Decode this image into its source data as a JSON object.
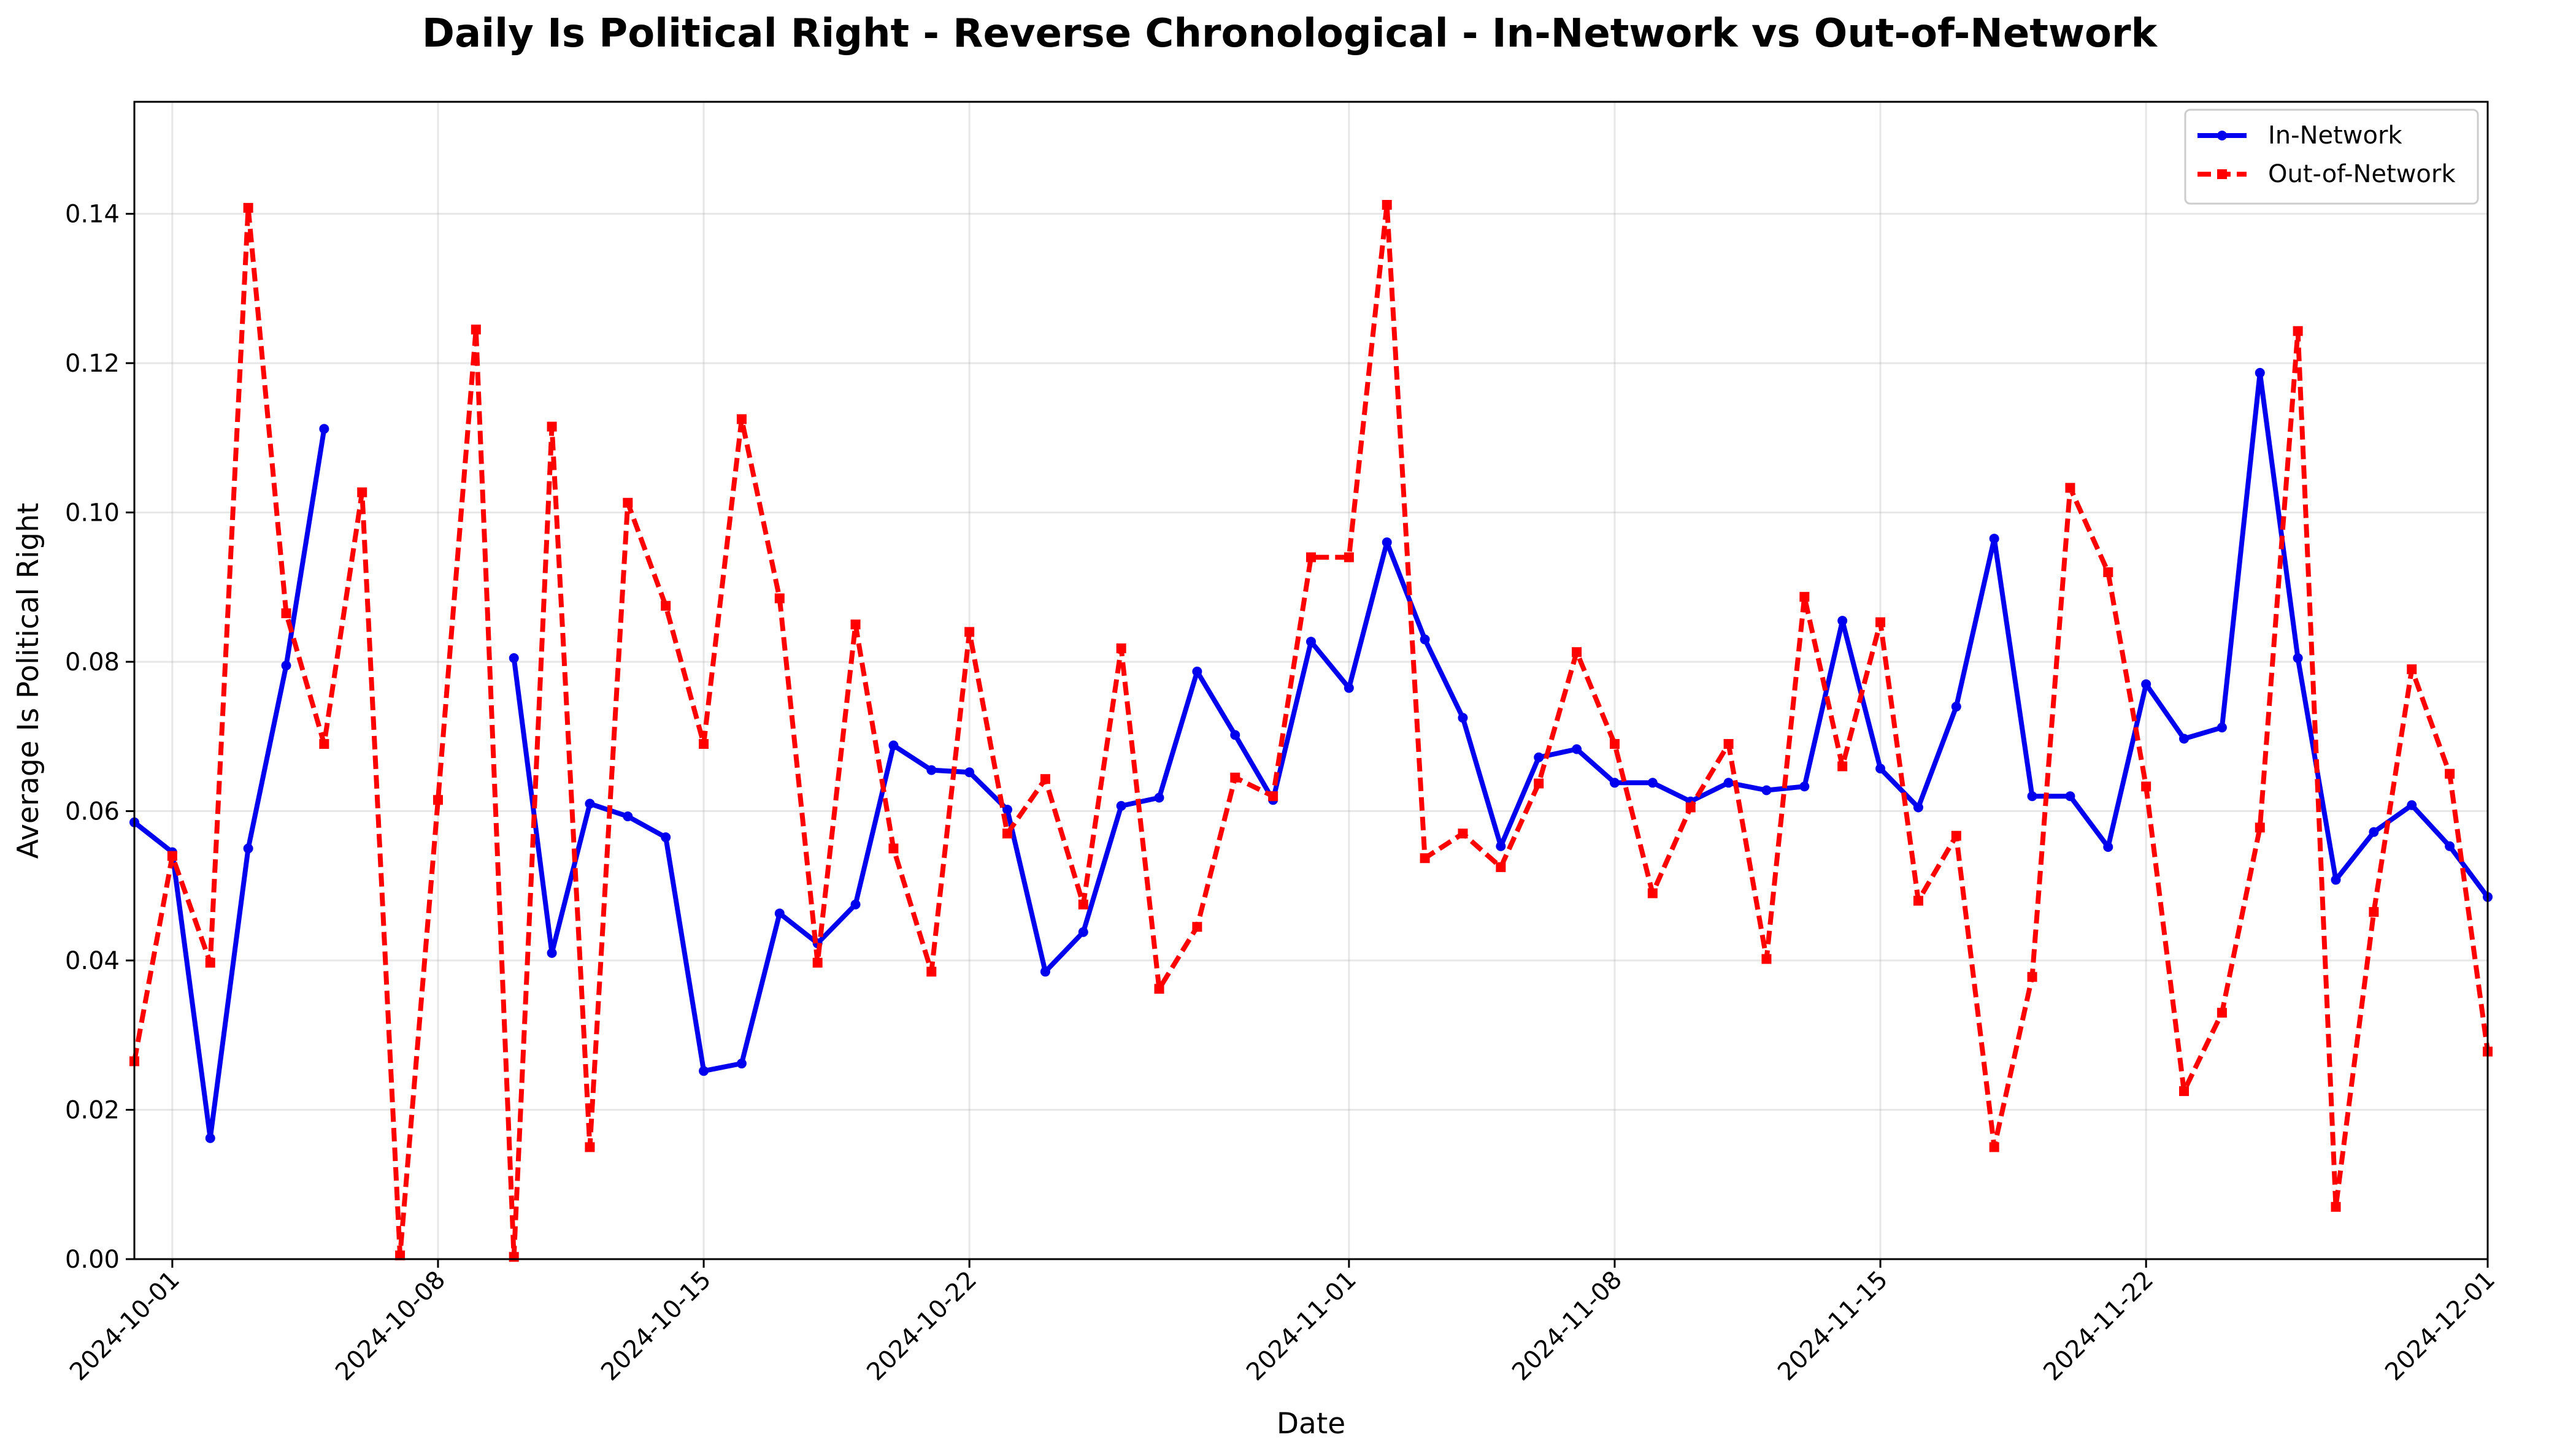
{
  "chart_data": {
    "type": "line",
    "title": "Daily Is Political Right - Reverse Chronological - In-Network vs Out-of-Network",
    "xlabel": "Date",
    "ylabel": "Average Is Political Right",
    "start_date": "2024-09-30",
    "xlim": [
      "2024-09-30",
      "2024-12-01"
    ],
    "ylim": [
      0,
      0.155
    ],
    "x_ticks": [
      "2024-10-01",
      "2024-10-08",
      "2024-10-15",
      "2024-10-22",
      "2024-11-01",
      "2024-11-08",
      "2024-11-15",
      "2024-11-22",
      "2024-12-01"
    ],
    "y_ticks": [
      "0.00",
      "0.02",
      "0.04",
      "0.06",
      "0.08",
      "0.10",
      "0.12",
      "0.14"
    ],
    "grid": true,
    "legend_position": "top-right",
    "series": [
      {
        "name": "In-Network",
        "color": "#0000ee",
        "style": "solid",
        "marker": "circle",
        "points": [
          [
            "2024-09-30",
            0.0585
          ],
          [
            "2024-10-01",
            0.0545
          ],
          [
            "2024-10-02",
            0.0162
          ],
          [
            "2024-10-03",
            0.055
          ],
          [
            "2024-10-04",
            0.0795
          ],
          [
            "2024-10-05",
            0.1112
          ],
          null,
          [
            "2024-10-10",
            0.0805
          ],
          [
            "2024-10-11",
            0.041
          ],
          [
            "2024-10-12",
            0.061
          ],
          [
            "2024-10-13",
            0.0593
          ],
          [
            "2024-10-14",
            0.0565
          ],
          [
            "2024-10-15",
            0.0252
          ],
          [
            "2024-10-16",
            0.0262
          ],
          [
            "2024-10-17",
            0.0463
          ],
          [
            "2024-10-18",
            0.0423
          ],
          [
            "2024-10-19",
            0.0475
          ],
          [
            "2024-10-20",
            0.0688
          ],
          [
            "2024-10-21",
            0.0655
          ],
          [
            "2024-10-22",
            0.0652
          ],
          [
            "2024-10-23",
            0.0602
          ],
          [
            "2024-10-24",
            0.0385
          ],
          [
            "2024-10-25",
            0.0438
          ],
          [
            "2024-10-26",
            0.0607
          ],
          [
            "2024-10-27",
            0.0618
          ],
          [
            "2024-10-28",
            0.0787
          ],
          [
            "2024-10-29",
            0.0702
          ],
          [
            "2024-10-30",
            0.0615
          ],
          [
            "2024-10-31",
            0.0827
          ],
          [
            "2024-11-01",
            0.0765
          ],
          [
            "2024-11-02",
            0.096
          ],
          [
            "2024-11-03",
            0.083
          ],
          [
            "2024-11-04",
            0.0725
          ],
          [
            "2024-11-05",
            0.0553
          ],
          [
            "2024-11-06",
            0.0672
          ],
          [
            "2024-11-07",
            0.0683
          ],
          [
            "2024-11-08",
            0.0638
          ],
          [
            "2024-11-09",
            0.0638
          ],
          [
            "2024-11-10",
            0.0613
          ],
          [
            "2024-11-11",
            0.0638
          ],
          [
            "2024-11-12",
            0.0628
          ],
          [
            "2024-11-13",
            0.0633
          ],
          [
            "2024-11-14",
            0.0855
          ],
          [
            "2024-11-15",
            0.0657
          ],
          [
            "2024-11-16",
            0.0605
          ],
          [
            "2024-11-17",
            0.074
          ],
          [
            "2024-11-18",
            0.0965
          ],
          [
            "2024-11-19",
            0.062
          ],
          [
            "2024-11-20",
            0.062
          ],
          [
            "2024-11-21",
            0.0552
          ],
          [
            "2024-11-22",
            0.077
          ],
          [
            "2024-11-23",
            0.0697
          ],
          [
            "2024-11-24",
            0.0712
          ],
          [
            "2024-11-25",
            0.1187
          ],
          [
            "2024-11-26",
            0.0805
          ],
          [
            "2024-11-27",
            0.0508
          ],
          [
            "2024-11-28",
            0.0572
          ],
          [
            "2024-11-29",
            0.0608
          ],
          [
            "2024-11-30",
            0.0553
          ],
          [
            "2024-12-01",
            0.0485
          ]
        ]
      },
      {
        "name": "Out-of-Network",
        "color": "#ff0000",
        "style": "dashed",
        "marker": "square",
        "points": [
          [
            "2024-09-30",
            0.0265
          ],
          [
            "2024-10-01",
            0.054
          ],
          [
            "2024-10-02",
            0.0397
          ],
          [
            "2024-10-03",
            0.1408
          ],
          [
            "2024-10-04",
            0.0865
          ],
          [
            "2024-10-05",
            0.069
          ],
          [
            "2024-10-06",
            0.1027
          ],
          [
            "2024-10-07",
            0.0005
          ],
          [
            "2024-10-08",
            0.0615
          ],
          [
            "2024-10-09",
            0.1245
          ],
          [
            "2024-10-10",
            0.0003
          ],
          [
            "2024-10-11",
            0.1115
          ],
          [
            "2024-10-12",
            0.015
          ],
          [
            "2024-10-13",
            0.1013
          ],
          [
            "2024-10-14",
            0.0875
          ],
          [
            "2024-10-15",
            0.069
          ],
          [
            "2024-10-16",
            0.1125
          ],
          [
            "2024-10-17",
            0.0885
          ],
          [
            "2024-10-18",
            0.0397
          ],
          [
            "2024-10-19",
            0.085
          ],
          [
            "2024-10-20",
            0.055
          ],
          [
            "2024-10-21",
            0.0385
          ],
          [
            "2024-10-22",
            0.084
          ],
          [
            "2024-10-23",
            0.057
          ],
          [
            "2024-10-24",
            0.0643
          ],
          [
            "2024-10-25",
            0.0475
          ],
          [
            "2024-10-26",
            0.0818
          ],
          [
            "2024-10-27",
            0.0362
          ],
          [
            "2024-10-28",
            0.0445
          ],
          [
            "2024-10-29",
            0.0645
          ],
          [
            "2024-10-30",
            0.062
          ],
          [
            "2024-10-31",
            0.094
          ],
          [
            "2024-11-01",
            0.094
          ],
          [
            "2024-11-02",
            0.1412
          ],
          [
            "2024-11-03",
            0.0537
          ],
          [
            "2024-11-04",
            0.057
          ],
          [
            "2024-11-05",
            0.0525
          ],
          [
            "2024-11-06",
            0.0637
          ],
          [
            "2024-11-07",
            0.0813
          ],
          [
            "2024-11-08",
            0.069
          ],
          [
            "2024-11-09",
            0.049
          ],
          [
            "2024-11-10",
            0.0605
          ],
          [
            "2024-11-11",
            0.069
          ],
          [
            "2024-11-12",
            0.0402
          ],
          [
            "2024-11-13",
            0.0887
          ],
          [
            "2024-11-14",
            0.066
          ],
          [
            "2024-11-15",
            0.0853
          ],
          [
            "2024-11-16",
            0.048
          ],
          [
            "2024-11-17",
            0.0567
          ],
          [
            "2024-11-18",
            0.015
          ],
          [
            "2024-11-19",
            0.0378
          ],
          [
            "2024-11-20",
            0.1033
          ],
          [
            "2024-11-21",
            0.092
          ],
          [
            "2024-11-22",
            0.0633
          ],
          [
            "2024-11-23",
            0.0225
          ],
          [
            "2024-11-24",
            0.033
          ],
          [
            "2024-11-25",
            0.0578
          ],
          [
            "2024-11-26",
            0.1243
          ],
          [
            "2024-11-27",
            0.007
          ],
          [
            "2024-11-28",
            0.0465
          ],
          [
            "2024-11-29",
            0.079
          ],
          [
            "2024-11-30",
            0.065
          ],
          [
            "2024-12-01",
            0.0278
          ]
        ]
      }
    ]
  }
}
